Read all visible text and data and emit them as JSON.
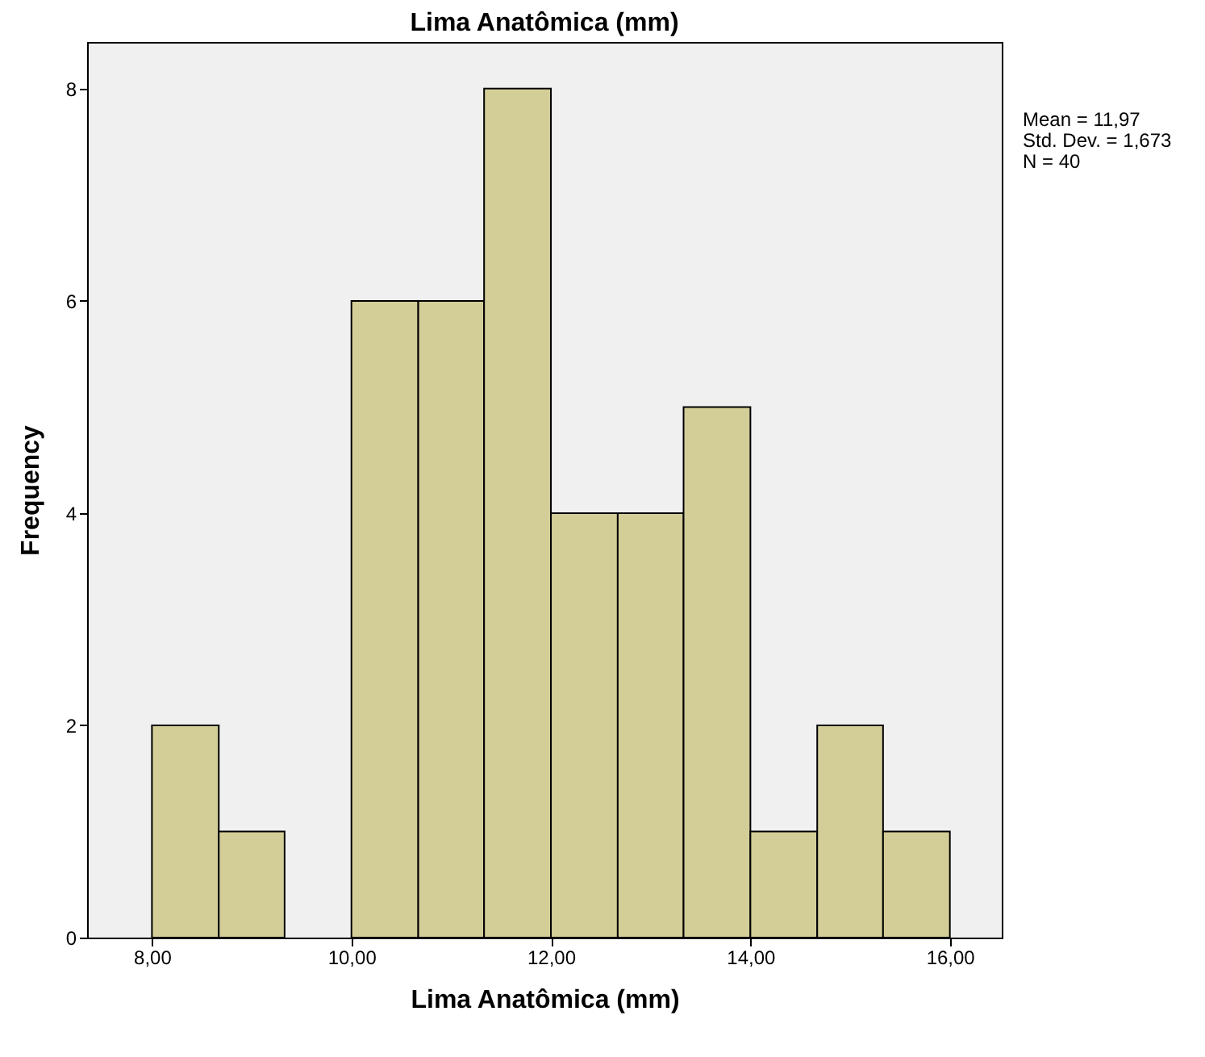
{
  "chart_data": {
    "type": "histogram",
    "title": "Lima Anatômica (mm)",
    "xlabel": "Lima Anatômica (mm)",
    "ylabel": "Frequency",
    "bins": [
      8,
      8.67,
      9.33,
      10,
      10.67,
      11.33,
      12,
      12.67,
      13.33,
      14,
      14.67,
      15.33,
      16
    ],
    "values": [
      2,
      1,
      0,
      6,
      6,
      8,
      4,
      4,
      5,
      1,
      2,
      1
    ],
    "color": "#d3ce98",
    "xlim": [
      7.35,
      16.52
    ],
    "xticks": [
      {
        "value": 8,
        "label": "8,00"
      },
      {
        "value": 10,
        "label": "10,00"
      },
      {
        "value": 12,
        "label": "12,00"
      },
      {
        "value": 14,
        "label": "14,00"
      },
      {
        "value": 16,
        "label": "16,00"
      }
    ],
    "ylim": [
      0,
      8.44
    ],
    "yticks": [
      0,
      2,
      4,
      6,
      8
    ],
    "grid": false,
    "annotations": [
      "Mean = 11,97",
      "Std. Dev. = 1,673",
      "N = 40"
    ]
  }
}
